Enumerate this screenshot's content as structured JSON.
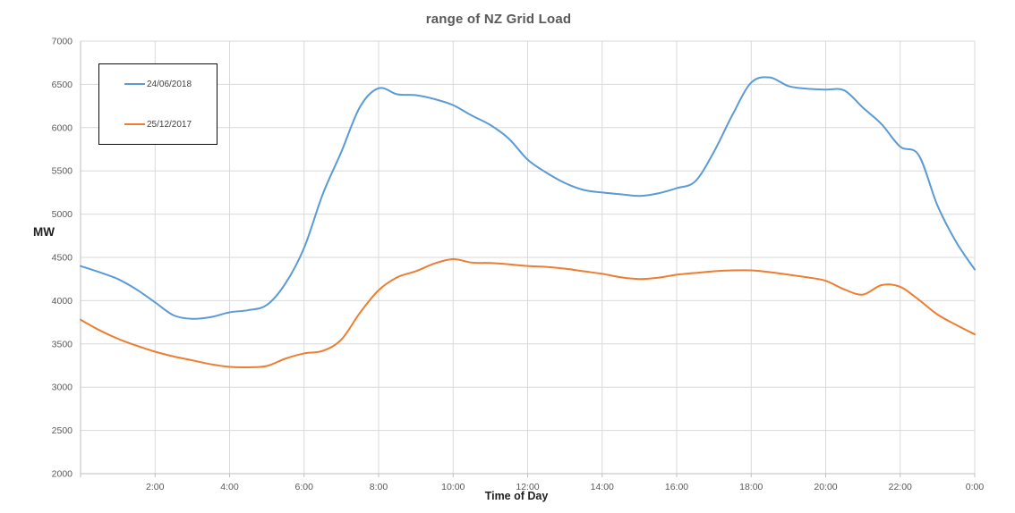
{
  "chart_data": {
    "type": "line",
    "title": "range of NZ Grid Load",
    "xlabel": "Time of Day",
    "ylabel": "MW",
    "ylim": [
      2000,
      7000
    ],
    "y_tick_step": 500,
    "y_tick_labels": [
      "2000",
      "2500",
      "3000",
      "3500",
      "4000",
      "4500",
      "5000",
      "5500",
      "6000",
      "6500",
      "7000"
    ],
    "x_range_hours": [
      0,
      24
    ],
    "x_step_hours": 0.5,
    "x_ticks": [
      {
        "hour": 2,
        "label": "2:00"
      },
      {
        "hour": 4,
        "label": "4:00"
      },
      {
        "hour": 6,
        "label": "6:00"
      },
      {
        "hour": 8,
        "label": "8:00"
      },
      {
        "hour": 10,
        "label": "10:00"
      },
      {
        "hour": 12,
        "label": "12:00"
      },
      {
        "hour": 14,
        "label": "14:00"
      },
      {
        "hour": 16,
        "label": "16:00"
      },
      {
        "hour": 18,
        "label": "18:00"
      },
      {
        "hour": 20,
        "label": "20:00"
      },
      {
        "hour": 22,
        "label": "22:00"
      },
      {
        "hour": 24,
        "label": "0:00"
      }
    ],
    "grid": true,
    "smoothed": true,
    "legend_position": "top-left",
    "series": [
      {
        "name": "24/06/2018",
        "color": "#5B9BD5",
        "values": [
          4400,
          4330,
          4250,
          4130,
          3980,
          3830,
          3790,
          3810,
          3865,
          3890,
          3950,
          4200,
          4610,
          5230,
          5720,
          6240,
          6455,
          6385,
          6375,
          6330,
          6260,
          6140,
          6030,
          5870,
          5630,
          5480,
          5360,
          5280,
          5250,
          5230,
          5210,
          5240,
          5300,
          5380,
          5720,
          6150,
          6520,
          6580,
          6480,
          6450,
          6440,
          6430,
          6230,
          6040,
          5780,
          5680,
          5100,
          4680,
          4360
        ]
      },
      {
        "name": "25/12/2017",
        "color": "#ED7D31",
        "values": [
          3780,
          3660,
          3560,
          3480,
          3410,
          3355,
          3310,
          3265,
          3235,
          3230,
          3245,
          3330,
          3390,
          3420,
          3550,
          3860,
          4120,
          4270,
          4340,
          4430,
          4480,
          4440,
          4435,
          4420,
          4400,
          4390,
          4370,
          4340,
          4310,
          4270,
          4250,
          4265,
          4300,
          4320,
          4340,
          4350,
          4350,
          4330,
          4300,
          4270,
          4230,
          4130,
          4070,
          4180,
          4160,
          4010,
          3840,
          3720,
          3610
        ]
      }
    ]
  },
  "style": {
    "gridline_color": "#D9D9D9",
    "axis_color": "#BFBFBF",
    "tick_label_color": "#595959",
    "title_color": "#595959",
    "background": "#FFFFFF"
  }
}
